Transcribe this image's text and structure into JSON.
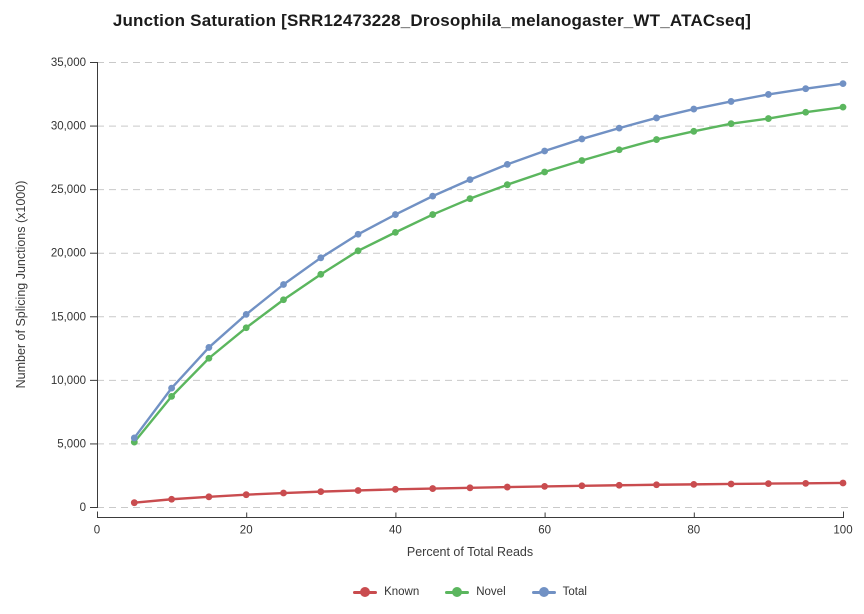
{
  "chart_data": {
    "type": "line",
    "title": "Junction Saturation [SRR12473228_Drosophila_melanogaster_WT_ATACseq]",
    "xlabel": "Percent of Total Reads",
    "ylabel": "Number of Splicing Junctions (x1000)",
    "x": [
      5,
      10,
      15,
      20,
      25,
      30,
      35,
      40,
      45,
      50,
      55,
      60,
      65,
      70,
      75,
      80,
      85,
      90,
      95,
      100
    ],
    "xlim": [
      0,
      100
    ],
    "ylim": [
      0,
      35000
    ],
    "x_ticks": [
      0,
      20,
      40,
      60,
      80,
      100
    ],
    "y_ticks": [
      0,
      5000,
      10000,
      15000,
      20000,
      25000,
      30000,
      35000
    ],
    "y_tick_labels": [
      "0",
      "5,000",
      "10,000",
      "15,000",
      "20,000",
      "25,000",
      "30,000",
      "35,000"
    ],
    "grid": "horizontal dashed gridlines",
    "legend_position": "bottom-center",
    "series": [
      {
        "name": "Known",
        "color": "#c94c4f",
        "values": [
          340,
          610,
          800,
          970,
          1100,
          1210,
          1300,
          1390,
          1450,
          1510,
          1570,
          1620,
          1670,
          1710,
          1750,
          1780,
          1810,
          1840,
          1860,
          1890
        ]
      },
      {
        "name": "Novel",
        "color": "#5bb65e",
        "values": [
          5100,
          8700,
          11700,
          14100,
          16300,
          18300,
          20150,
          21600,
          23000,
          24250,
          25350,
          26350,
          27250,
          28100,
          28900,
          29550,
          30150,
          30550,
          31050,
          31450
        ]
      },
      {
        "name": "Total",
        "color": "#7191c4",
        "values": [
          5430,
          9350,
          12550,
          15150,
          17500,
          19600,
          21450,
          23000,
          24450,
          25750,
          26950,
          28000,
          28950,
          29800,
          30600,
          31300,
          31900,
          32450,
          32900,
          33300
        ]
      }
    ]
  }
}
